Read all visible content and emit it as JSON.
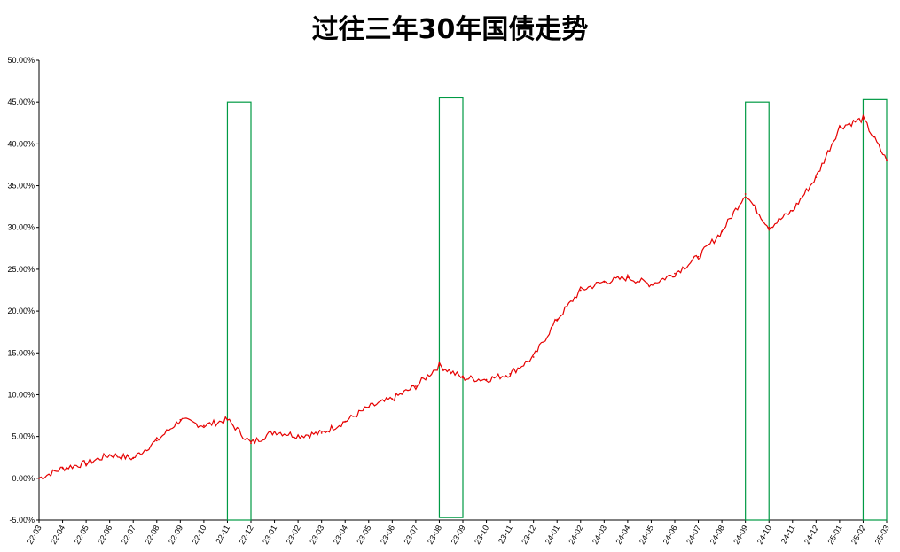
{
  "chart_data": {
    "type": "line",
    "title": "过往三年30年国债走势",
    "xlabel": "",
    "ylabel": "",
    "ylim": [
      -5,
      50
    ],
    "yticks": [
      "-5.00%",
      "0.00%",
      "5.00%",
      "10.00%",
      "15.00%",
      "20.00%",
      "25.00%",
      "30.00%",
      "35.00%",
      "40.00%",
      "45.00%",
      "50.00%"
    ],
    "categories": [
      "22-03",
      "22-04",
      "22-05",
      "22-06",
      "22-07",
      "22-08",
      "22-09",
      "22-10",
      "22-11",
      "22-12",
      "23-01",
      "23-02",
      "23-03",
      "23-04",
      "23-05",
      "23-06",
      "23-07",
      "23-08",
      "23-09",
      "23-10",
      "23-11",
      "23-12",
      "24-01",
      "24-02",
      "24-03",
      "24-04",
      "24-05",
      "24-06",
      "24-07",
      "24-08",
      "24-09",
      "24-10",
      "24-11",
      "24-12",
      "25-01",
      "25-02",
      "25-03"
    ],
    "series": [
      {
        "values": [
          0.0,
          1.2,
          1.8,
          2.8,
          2.4,
          4.5,
          7.0,
          6.3,
          7.0,
          4.2,
          5.6,
          5.1,
          5.4,
          6.8,
          8.5,
          9.5,
          11.0,
          13.5,
          12.0,
          11.8,
          12.5,
          14.5,
          19.0,
          22.5,
          23.5,
          24.0,
          23.2,
          24.5,
          26.5,
          29.5,
          34.0,
          30.0,
          32.0,
          36.0,
          42.0,
          43.0,
          38.0
        ]
      }
    ],
    "highlight_ranges": [
      {
        "from": "22-11",
        "to": "22-12",
        "ymin": -5,
        "ymax": 45
      },
      {
        "from": "23-08",
        "to": "23-09",
        "ymin": -4.7,
        "ymax": 45.5
      },
      {
        "from": "24-09",
        "to": "24-10",
        "ymin": -5,
        "ymax": 45
      },
      {
        "from": "25-02",
        "to": "25-03",
        "ymin": -5,
        "ymax": 45.3
      }
    ],
    "grid": false,
    "legend": "none",
    "colors": {
      "line": "#e60000",
      "highlight": "#009a44",
      "axis": "#000000"
    }
  }
}
